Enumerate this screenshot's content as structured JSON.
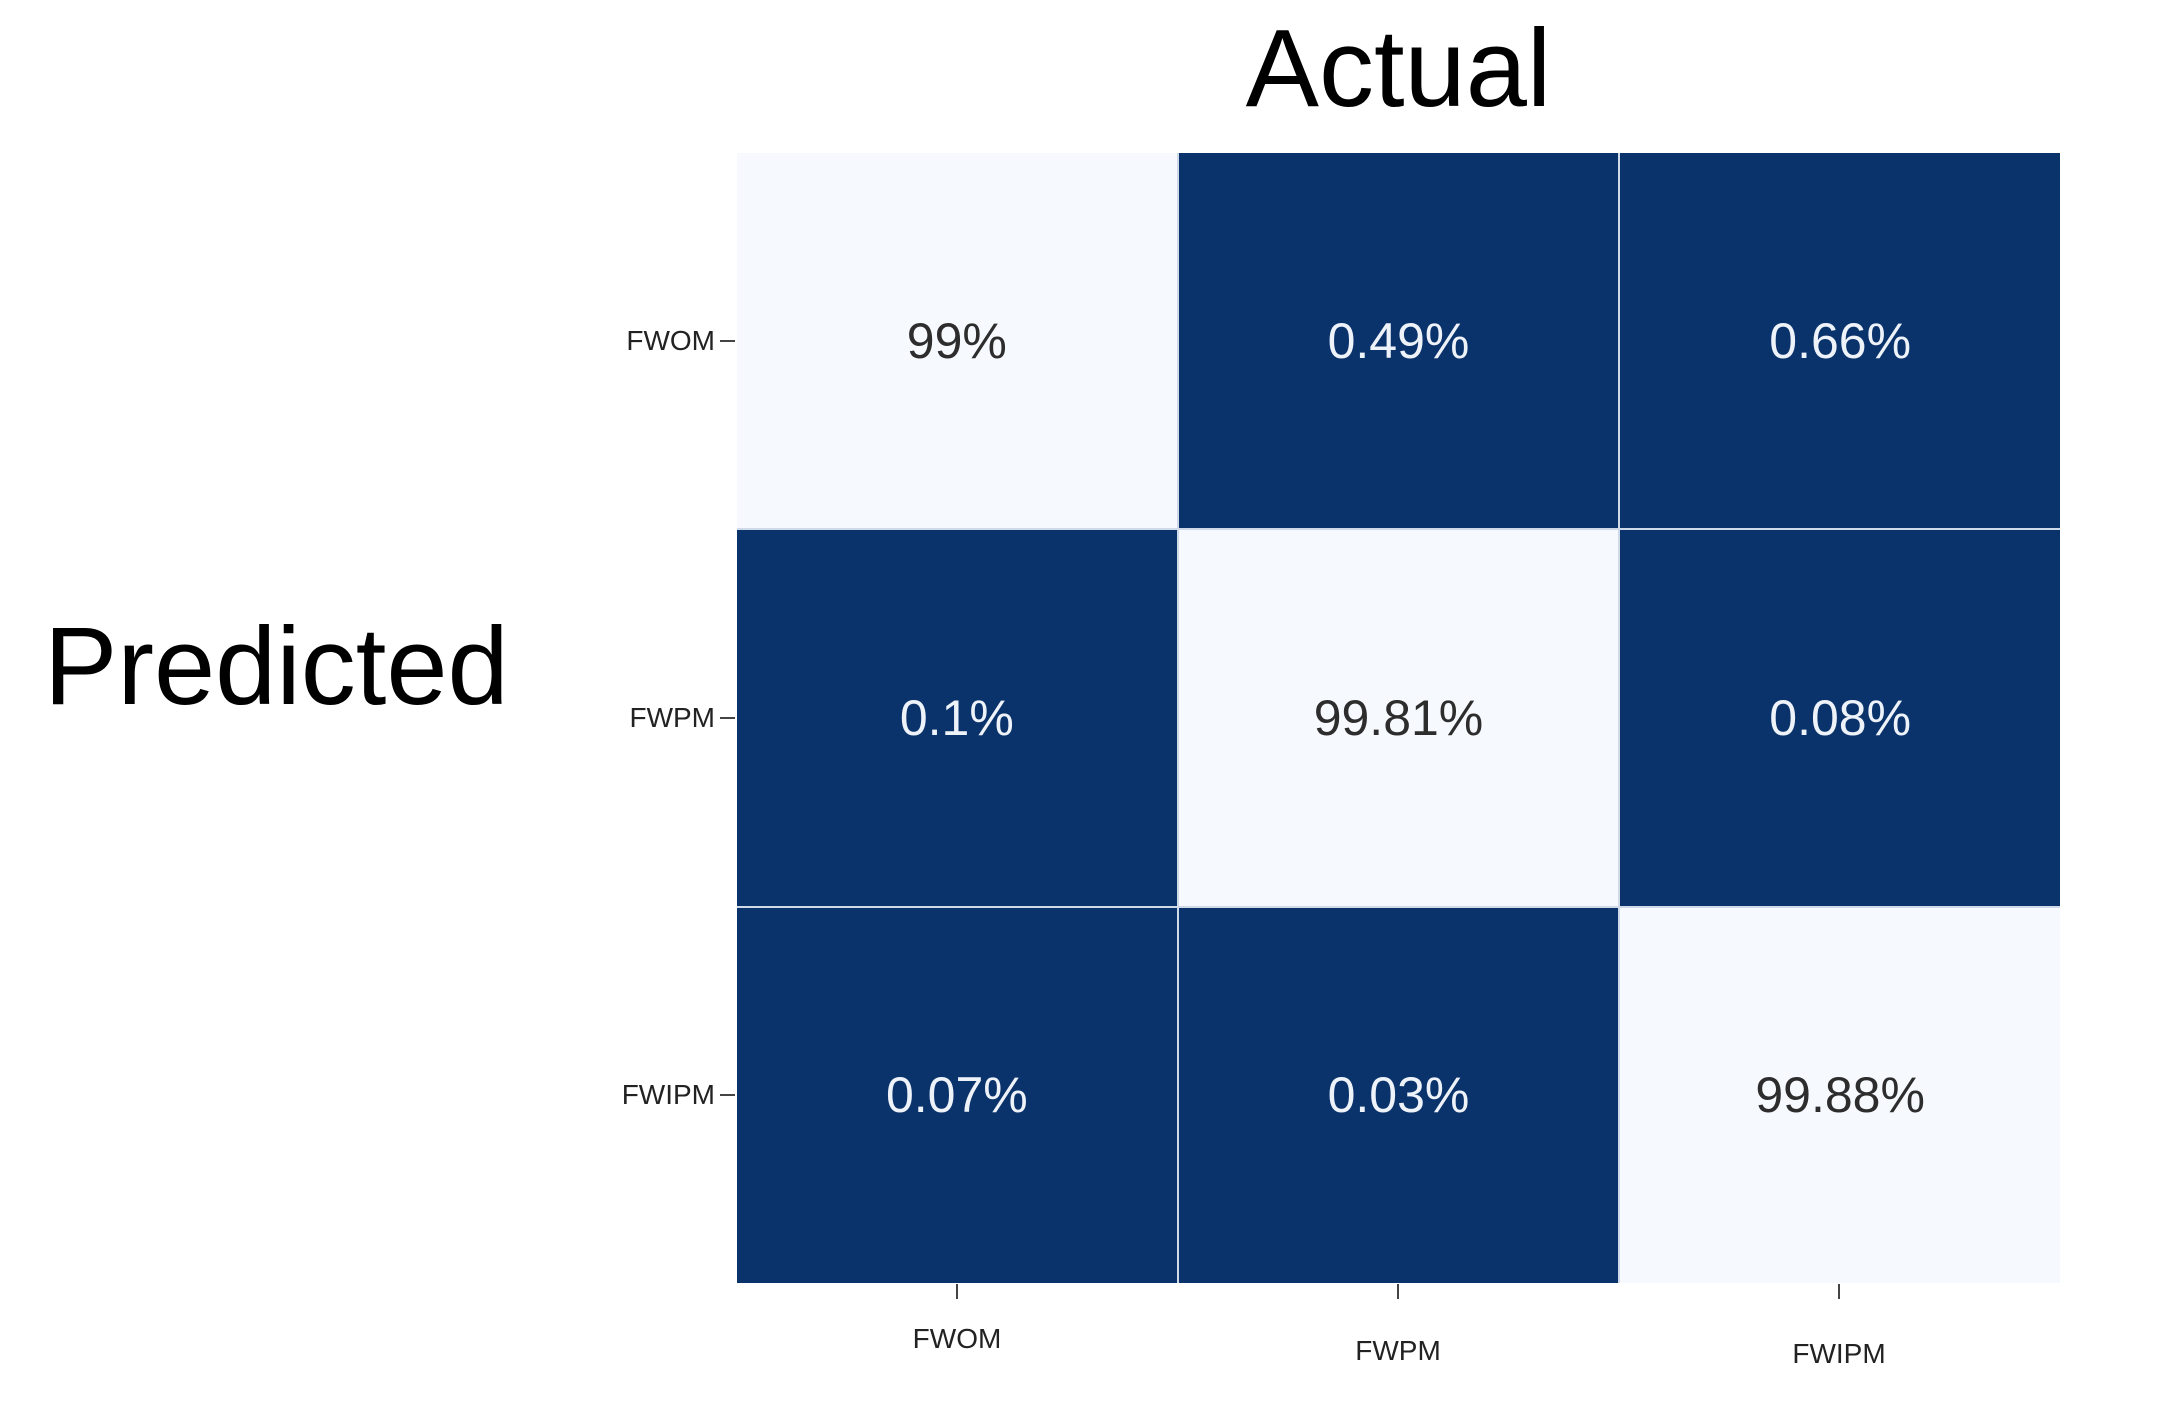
{
  "figure": {
    "title": "Actual",
    "y_axis_title": "Predicted",
    "colors": {
      "dark_cell": "#0b336b",
      "light_cell": "#f6f9fe",
      "gap_line": "#cfd9e8",
      "text_on_dark": "#eef2f9",
      "text_on_light": "#2d2d2d",
      "title_color": "#000000",
      "tick_color": "#444444"
    }
  },
  "chart_data": {
    "type": "heatmap",
    "title": "Actual",
    "xlabel": "Actual",
    "ylabel": "Predicted",
    "x_categories": [
      "FWOM",
      "FWPM",
      "FWIPM"
    ],
    "y_categories": [
      "FWOM",
      "FWPM",
      "FWIPM"
    ],
    "values_percent": [
      [
        99,
        0.49,
        0.66
      ],
      [
        0.1,
        99.81,
        0.08
      ],
      [
        0.07,
        0.03,
        99.88
      ]
    ],
    "cell_labels": [
      [
        "99%",
        "0.49%",
        "0.66%"
      ],
      [
        "0.1%",
        "99.81%",
        "0.08%"
      ],
      [
        "0.07%",
        "0.03%",
        "99.88%"
      ]
    ],
    "colorscale": "Blues reversed (low value = dark navy, high value = near white)",
    "legend_position": "none",
    "grid": "off"
  }
}
